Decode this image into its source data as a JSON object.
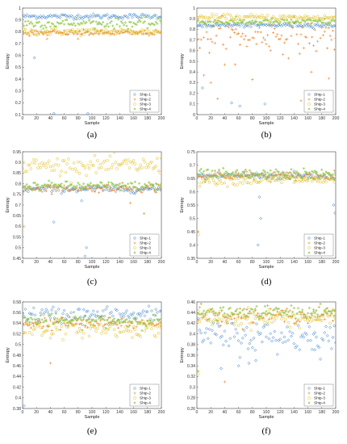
{
  "colors": {
    "ship1": "#1f6fbf",
    "ship2": "#e8822a",
    "ship3": "#e0c020",
    "ship4": "#8cc63f"
  },
  "chart_data": [
    {
      "type": "scatter",
      "caption": "(a)",
      "xlabel": "Sample",
      "ylabel": "Entropy",
      "xlim": [
        0,
        200
      ],
      "ylim": [
        0.1,
        1
      ],
      "xticks": [
        0,
        20,
        40,
        60,
        80,
        100,
        120,
        140,
        160,
        180,
        200
      ],
      "yticks": [
        0.1,
        0.2,
        0.3,
        0.4,
        0.5,
        0.6,
        0.7,
        0.8,
        0.9,
        1
      ],
      "grid": false,
      "legend": "bottom-right",
      "series": [
        {
          "name": "Ship-1",
          "marker": "diamond",
          "mean": 0.93,
          "spread": 0.01,
          "outliers": [
            [
              17,
              0.58
            ],
            [
              45,
              0.11
            ],
            [
              94,
              0.11
            ],
            [
              110,
              0.87
            ]
          ]
        },
        {
          "name": "Ship-2",
          "marker": "plus",
          "mean": 0.79,
          "spread": 0.012,
          "outliers": [
            [
              35,
              0.74
            ],
            [
              80,
              0.74
            ]
          ]
        },
        {
          "name": "Ship-3",
          "marker": "circle",
          "mean": 0.8,
          "spread": 0.015,
          "outliers": []
        },
        {
          "name": "Ship-4",
          "marker": "star",
          "mean": 0.87,
          "spread": 0.02,
          "outliers": []
        }
      ]
    },
    {
      "type": "scatter",
      "caption": "(b)",
      "xlabel": "Sample",
      "ylabel": "Entropy",
      "xlim": [
        0,
        200
      ],
      "ylim": [
        0,
        1
      ],
      "xticks": [
        0,
        20,
        40,
        60,
        80,
        100,
        120,
        140,
        160,
        180,
        200
      ],
      "yticks": [
        0,
        0.1,
        0.2,
        0.3,
        0.4,
        0.5,
        0.6,
        0.7,
        0.8,
        0.9,
        1
      ],
      "grid": false,
      "legend": "bottom-right",
      "series": [
        {
          "name": "Ship-1",
          "marker": "diamond",
          "mean": 0.84,
          "spread": 0.01,
          "outliers": [
            [
              8,
              0.25
            ],
            [
              50,
              0.11
            ],
            [
              62,
              0.08
            ],
            [
              98,
              0.1
            ]
          ]
        },
        {
          "name": "Ship-2",
          "marker": "plus",
          "mean": 0.74,
          "spread": 0.08,
          "outliers": [
            [
              10,
              0.37
            ],
            [
              20,
              0.3
            ],
            [
              30,
              0.15
            ],
            [
              55,
              0.47
            ],
            [
              80,
              0.33
            ],
            [
              150,
              0.13
            ],
            [
              165,
              0.4
            ],
            [
              190,
              0.34
            ]
          ]
        },
        {
          "name": "Ship-3",
          "marker": "circle",
          "mean": 0.91,
          "spread": 0.015,
          "outliers": []
        },
        {
          "name": "Ship-4",
          "marker": "star",
          "mean": 0.87,
          "spread": 0.015,
          "outliers": []
        }
      ]
    },
    {
      "type": "scatter",
      "caption": "(c)",
      "xlabel": "Sample",
      "ylabel": "Entropy",
      "xlim": [
        0,
        200
      ],
      "ylim": [
        0.45,
        0.95
      ],
      "xticks": [
        0,
        20,
        40,
        60,
        80,
        100,
        120,
        140,
        160,
        180,
        200
      ],
      "yticks": [
        0.45,
        0.5,
        0.55,
        0.6,
        0.65,
        0.7,
        0.75,
        0.8,
        0.85,
        0.9,
        0.95
      ],
      "grid": false,
      "legend": "bottom-right",
      "series": [
        {
          "name": "Ship-1",
          "marker": "diamond",
          "mean": 0.775,
          "spread": 0.008,
          "outliers": [
            [
              45,
              0.62
            ],
            [
              90,
              0.46
            ],
            [
              92,
              0.5
            ],
            [
              85,
              0.72
            ]
          ]
        },
        {
          "name": "Ship-2",
          "marker": "plus",
          "mean": 0.78,
          "spread": 0.01,
          "outliers": [
            [
              155,
              0.71
            ]
          ]
        },
        {
          "name": "Ship-3",
          "marker": "circle",
          "mean": 0.885,
          "spread": 0.02,
          "outliers": [
            [
              2,
              0.6
            ]
          ]
        },
        {
          "name": "Ship-4",
          "marker": "star",
          "mean": 0.79,
          "spread": 0.01,
          "outliers": [
            [
              175,
              0.66
            ]
          ]
        }
      ]
    },
    {
      "type": "scatter",
      "caption": "(d)",
      "xlabel": "Sample",
      "ylabel": "Entropy",
      "xlim": [
        0,
        200
      ],
      "ylim": [
        0.35,
        0.75
      ],
      "xticks": [
        0,
        20,
        40,
        60,
        80,
        100,
        120,
        140,
        160,
        180,
        200
      ],
      "yticks": [
        0.35,
        0.4,
        0.45,
        0.5,
        0.55,
        0.6,
        0.65,
        0.7,
        0.75
      ],
      "grid": false,
      "legend": "bottom-right",
      "series": [
        {
          "name": "Ship-1",
          "marker": "diamond",
          "mean": 0.66,
          "spread": 0.008,
          "outliers": [
            [
              90,
              0.58
            ],
            [
              92,
              0.5
            ],
            [
              88,
              0.4
            ],
            [
              197,
              0.55
            ],
            [
              199,
              0.52
            ]
          ]
        },
        {
          "name": "Ship-2",
          "marker": "plus",
          "mean": 0.66,
          "spread": 0.008,
          "outliers": [
            [
              2,
              0.45
            ]
          ]
        },
        {
          "name": "Ship-3",
          "marker": "circle",
          "mean": 0.645,
          "spread": 0.01,
          "outliers": [
            [
              2,
              0.44
            ]
          ]
        },
        {
          "name": "Ship-4",
          "marker": "star",
          "mean": 0.665,
          "spread": 0.01,
          "outliers": []
        }
      ]
    },
    {
      "type": "scatter",
      "caption": "(e)",
      "xlabel": "Sample",
      "ylabel": "Entropy",
      "xlim": [
        0,
        200
      ],
      "ylim": [
        0.38,
        0.58
      ],
      "xticks": [
        0,
        20,
        40,
        60,
        80,
        100,
        120,
        140,
        160,
        180,
        200
      ],
      "yticks": [
        0.38,
        0.4,
        0.42,
        0.44,
        0.46,
        0.48,
        0.5,
        0.52,
        0.54,
        0.56,
        0.58
      ],
      "grid": false,
      "legend": "bottom-right",
      "series": [
        {
          "name": "Ship-1",
          "marker": "diamond",
          "mean": 0.555,
          "spread": 0.008,
          "outliers": [
            [
              2,
              0.385
            ]
          ]
        },
        {
          "name": "Ship-2",
          "marker": "plus",
          "mean": 0.54,
          "spread": 0.006,
          "outliers": [
            [
              40,
              0.465
            ]
          ]
        },
        {
          "name": "Ship-3",
          "marker": "circle",
          "mean": 0.53,
          "spread": 0.008,
          "outliers": []
        },
        {
          "name": "Ship-4",
          "marker": "star",
          "mean": 0.545,
          "spread": 0.006,
          "outliers": []
        }
      ]
    },
    {
      "type": "scatter",
      "caption": "(f)",
      "xlabel": "Sample",
      "ylabel": "Entropy",
      "xlim": [
        0,
        200
      ],
      "ylim": [
        0.26,
        0.46
      ],
      "xticks": [
        0,
        20,
        40,
        60,
        80,
        100,
        120,
        140,
        160,
        180,
        200
      ],
      "yticks": [
        0.26,
        0.28,
        0.3,
        0.32,
        0.34,
        0.36,
        0.38,
        0.4,
        0.42,
        0.44,
        0.46
      ],
      "grid": false,
      "legend": "bottom-right",
      "series": [
        {
          "name": "Ship-1",
          "marker": "diamond",
          "mean": 0.395,
          "spread": 0.015,
          "outliers": [
            [
              35,
              0.335
            ],
            [
              60,
              0.34
            ],
            [
              75,
              0.345
            ],
            [
              85,
              0.35
            ],
            [
              170,
              0.37
            ]
          ]
        },
        {
          "name": "Ship-2",
          "marker": "plus",
          "mean": 0.435,
          "spread": 0.007,
          "outliers": [
            [
              40,
              0.31
            ]
          ]
        },
        {
          "name": "Ship-3",
          "marker": "circle",
          "mean": 0.43,
          "spread": 0.008,
          "outliers": [
            [
              2,
              0.325
            ]
          ]
        },
        {
          "name": "Ship-4",
          "marker": "star",
          "mean": 0.44,
          "spread": 0.006,
          "outliers": [
            [
              2,
              0.33
            ]
          ]
        }
      ]
    }
  ]
}
